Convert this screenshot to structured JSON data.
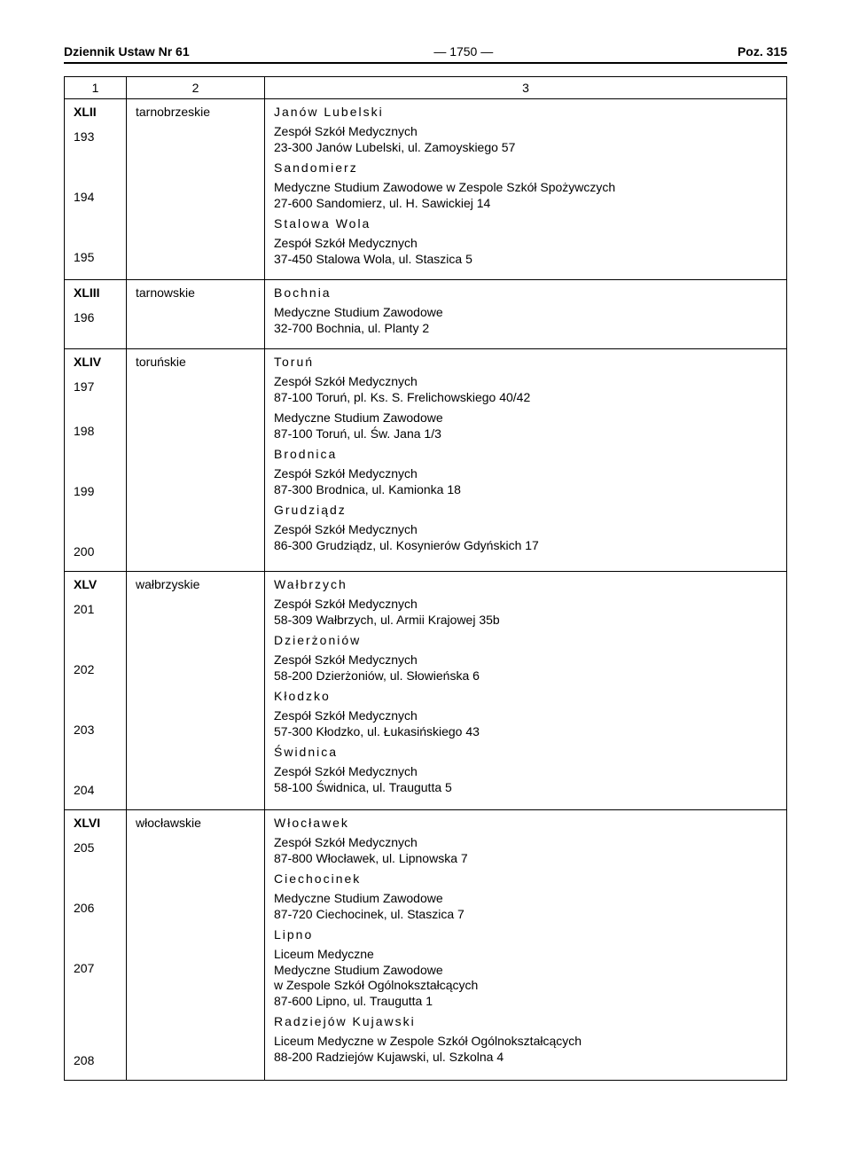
{
  "header": {
    "left": "Dziennik Ustaw Nr 61",
    "center": "—   1750   —",
    "right": "Poz. 315"
  },
  "table": {
    "columns": [
      "1",
      "2",
      "3"
    ],
    "sections": [
      {
        "roman": "XLII",
        "voivodeship": "tarnobrzeskie",
        "items": [
          {
            "num": "193",
            "city": "Janów Lubelski",
            "lines": [
              "Zespół Szkół Medycznych",
              "23-300 Janów Lubelski, ul. Zamoyskiego 57"
            ]
          },
          {
            "num": "194",
            "city": "Sandomierz",
            "lines": [
              "Medyczne Studium Zawodowe w Zespole Szkół Spożywczych",
              "27-600 Sandomierz, ul. H. Sawickiej 14"
            ]
          },
          {
            "num": "195",
            "city": "Stalowa Wola",
            "lines": [
              "Zespół Szkół Medycznych",
              "37-450 Stalowa Wola, ul. Staszica 5"
            ]
          }
        ]
      },
      {
        "roman": "XLIII",
        "voivodeship": "tarnowskie",
        "items": [
          {
            "num": "196",
            "city": "Bochnia",
            "lines": [
              "Medyczne Studium Zawodowe",
              "32-700 Bochnia, ul. Planty 2"
            ]
          }
        ]
      },
      {
        "roman": "XLIV",
        "voivodeship": "toruńskie",
        "items": [
          {
            "num": "197",
            "city": "Toruń",
            "lines": [
              "Zespół Szkół Medycznych",
              "87-100 Toruń, pl. Ks. S. Frelichowskiego 40/42"
            ]
          },
          {
            "num": "198",
            "city": null,
            "lines": [
              "Medyczne Studium Zawodowe",
              "87-100 Toruń, ul. Św. Jana 1/3"
            ]
          },
          {
            "num": "199",
            "city": "Brodnica",
            "lines": [
              "Zespół Szkół Medycznych",
              "87-300 Brodnica, ul. Kamionka 18"
            ]
          },
          {
            "num": "200",
            "city": "Grudziądz",
            "lines": [
              "Zespół Szkół Medycznych",
              "86-300 Grudziądz, ul. Kosynierów Gdyńskich 17"
            ]
          }
        ]
      },
      {
        "roman": "XLV",
        "voivodeship": "wałbrzyskie",
        "items": [
          {
            "num": "201",
            "city": "Wałbrzych",
            "lines": [
              "Zespół Szkół Medycznych",
              "58-309 Wałbrzych, ul. Armii Krajowej 35b"
            ]
          },
          {
            "num": "202",
            "city": "Dzierżoniów",
            "lines": [
              "Zespół Szkół Medycznych",
              "58-200 Dzierżoniów, ul. Słowieńska 6"
            ]
          },
          {
            "num": "203",
            "city": "Kłodzko",
            "lines": [
              "Zespół Szkół Medycznych",
              "57-300 Kłodzko, ul. Łukasińskiego 43"
            ]
          },
          {
            "num": "204",
            "city": "Świdnica",
            "lines": [
              "Zespół Szkół Medycznych",
              "58-100 Świdnica, ul. Traugutta 5"
            ]
          }
        ]
      },
      {
        "roman": "XLVI",
        "voivodeship": "włocławskie",
        "items": [
          {
            "num": "205",
            "city": "Włocławek",
            "lines": [
              "Zespół Szkół Medycznych",
              "87-800 Włocławek, ul. Lipnowska 7"
            ]
          },
          {
            "num": "206",
            "city": "Ciechocinek",
            "lines": [
              "Medyczne Studium Zawodowe",
              "87-720 Ciechocinek, ul. Staszica 7"
            ]
          },
          {
            "num": "207",
            "city": "Lipno",
            "lines": [
              "Liceum Medyczne",
              "Medyczne Studium Zawodowe",
              "w Zespole Szkół Ogólnokształcących",
              "87-600 Lipno, ul. Traugutta 1"
            ]
          },
          {
            "num": "208",
            "city": "Radziejów Kujawski",
            "lines": [
              "Liceum Medyczne w Zespole Szkół Ogólnokształcących",
              "88-200 Radziejów Kujawski, ul. Szkolna 4"
            ]
          }
        ]
      }
    ]
  }
}
